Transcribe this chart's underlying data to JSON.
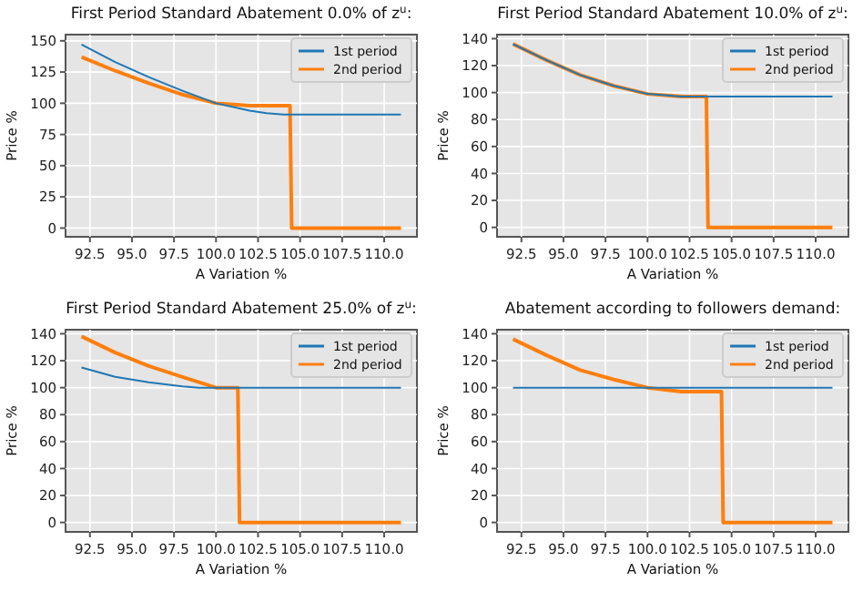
{
  "chart_data": [
    {
      "type": "line",
      "title": "First Period Standard Abatement 0.0% of z$^{u}$:",
      "xlabel": "A Variation %",
      "ylabel": "Price %",
      "xlim": [
        91.05,
        111.95
      ],
      "xticks": [
        {
          "value": 92.5,
          "label": "92.5"
        },
        {
          "value": 95,
          "label": "95.0"
        },
        {
          "value": 97.5,
          "label": "97.5"
        },
        {
          "value": 100,
          "label": "100.0"
        },
        {
          "value": 102.5,
          "label": "102.5"
        },
        {
          "value": 105,
          "label": "105.0"
        },
        {
          "value": 107.5,
          "label": "107.5"
        },
        {
          "value": 110,
          "label": "110.0"
        }
      ],
      "ylim": [
        -7,
        155
      ],
      "yticks": [
        0,
        25,
        50,
        75,
        100,
        125,
        150
      ],
      "grid": true,
      "legend": "top right",
      "series": [
        {
          "name": "1st period",
          "color": "#1f77b4",
          "x": [
            92,
            94,
            96,
            98,
            100,
            102,
            103,
            104,
            106,
            111
          ],
          "values": [
            147,
            133,
            121,
            110,
            100,
            94,
            92,
            91,
            91,
            91
          ]
        },
        {
          "name": "2nd period",
          "color": "#ff7f0e",
          "x": [
            92,
            94,
            96,
            98,
            100,
            102,
            104.4,
            104.5,
            111
          ],
          "values": [
            137,
            126,
            116,
            107,
            100,
            98,
            98,
            0,
            0
          ]
        }
      ]
    },
    {
      "type": "line",
      "title": "First Period Standard Abatement 10.0% of z$^{u}$:",
      "xlabel": "A Variation %",
      "ylabel": "Price %",
      "xlim": [
        91.05,
        111.95
      ],
      "xticks": [
        {
          "value": 92.5,
          "label": "92.5"
        },
        {
          "value": 95,
          "label": "95.0"
        },
        {
          "value": 97.5,
          "label": "97.5"
        },
        {
          "value": 100,
          "label": "100.0"
        },
        {
          "value": 102.5,
          "label": "102.5"
        },
        {
          "value": 105,
          "label": "105.0"
        },
        {
          "value": 107.5,
          "label": "107.5"
        },
        {
          "value": 110,
          "label": "110.0"
        }
      ],
      "ylim": [
        -7,
        143
      ],
      "yticks": [
        0,
        20,
        40,
        60,
        80,
        100,
        120,
        140
      ],
      "grid": true,
      "legend": "top right",
      "series": [
        {
          "name": "1st period",
          "color": "#1f77b4",
          "x": [
            92,
            94,
            96,
            98,
            100,
            101,
            102,
            103.5,
            111
          ],
          "values": [
            136,
            124,
            113,
            105,
            99,
            98,
            97,
            97,
            97
          ]
        },
        {
          "name": "2nd period",
          "color": "#ff7f0e",
          "x": [
            92,
            94,
            96,
            98,
            100,
            101,
            102,
            103.5,
            103.6,
            111
          ],
          "values": [
            136,
            124,
            113,
            105,
            99,
            98,
            97,
            97,
            0,
            0
          ]
        }
      ]
    },
    {
      "type": "line",
      "title": "First Period Standard Abatement 25.0% of z$^{u}$:",
      "xlabel": "A Variation %",
      "ylabel": "Price %",
      "xlim": [
        91.05,
        111.95
      ],
      "xticks": [
        {
          "value": 92.5,
          "label": "92.5"
        },
        {
          "value": 95,
          "label": "95.0"
        },
        {
          "value": 97.5,
          "label": "97.5"
        },
        {
          "value": 100,
          "label": "100.0"
        },
        {
          "value": 102.5,
          "label": "102.5"
        },
        {
          "value": 105,
          "label": "105.0"
        },
        {
          "value": 107.5,
          "label": "107.5"
        },
        {
          "value": 110,
          "label": "110.0"
        }
      ],
      "ylim": [
        -7,
        143
      ],
      "yticks": [
        0,
        20,
        40,
        60,
        80,
        100,
        120,
        140
      ],
      "grid": true,
      "legend": "top right",
      "series": [
        {
          "name": "1st period",
          "color": "#1f77b4",
          "x": [
            92,
            94,
            96,
            98,
            99,
            111
          ],
          "values": [
            115,
            108,
            104,
            101,
            100,
            100
          ]
        },
        {
          "name": "2nd period",
          "color": "#ff7f0e",
          "x": [
            92,
            94,
            96,
            98,
            100,
            101.3,
            101.4,
            111
          ],
          "values": [
            138,
            126,
            116,
            108,
            100,
            100,
            0,
            0
          ]
        }
      ]
    },
    {
      "type": "line",
      "title": "Abatement according to followers demand:",
      "xlabel": "A Variation %",
      "ylabel": "Price %",
      "xlim": [
        91.05,
        111.95
      ],
      "xticks": [
        {
          "value": 92.5,
          "label": "92.5"
        },
        {
          "value": 95,
          "label": "95.0"
        },
        {
          "value": 97.5,
          "label": "97.5"
        },
        {
          "value": 100,
          "label": "100.0"
        },
        {
          "value": 102.5,
          "label": "102.5"
        },
        {
          "value": 105,
          "label": "105.0"
        },
        {
          "value": 107.5,
          "label": "107.5"
        },
        {
          "value": 110,
          "label": "110.0"
        }
      ],
      "ylim": [
        -7,
        143
      ],
      "yticks": [
        0,
        20,
        40,
        60,
        80,
        100,
        120,
        140
      ],
      "grid": true,
      "legend": "top right",
      "series": [
        {
          "name": "1st period",
          "color": "#1f77b4",
          "x": [
            92,
            111
          ],
          "values": [
            100,
            100
          ]
        },
        {
          "name": "2nd period",
          "color": "#ff7f0e",
          "x": [
            92,
            94,
            96,
            98,
            100,
            102,
            104.4,
            104.5,
            111
          ],
          "values": [
            136,
            124,
            113,
            106,
            100,
            97,
            97,
            0,
            0
          ]
        }
      ]
    }
  ]
}
